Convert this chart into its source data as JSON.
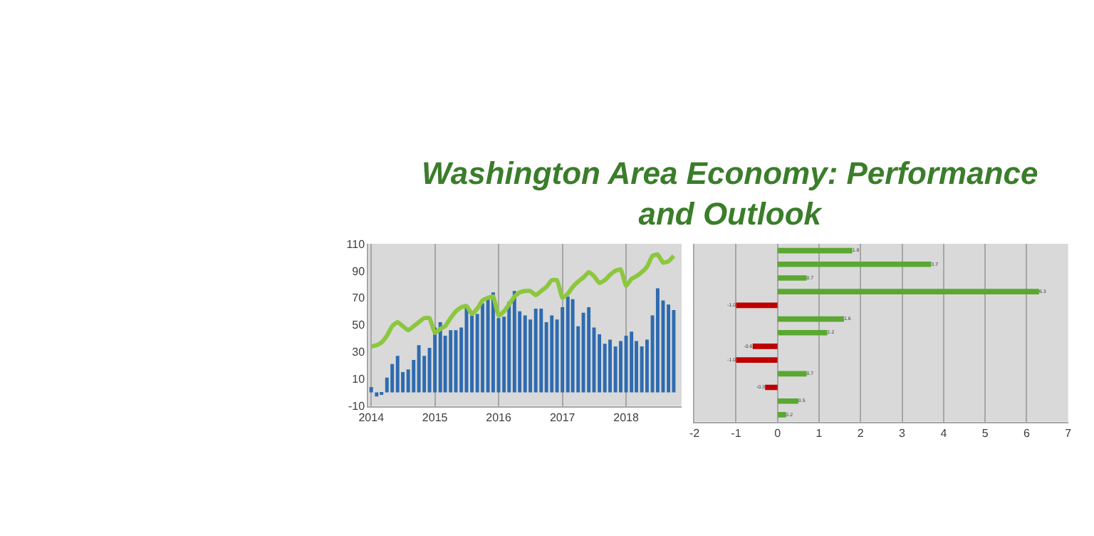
{
  "chart_data": [
    {
      "type": "bar",
      "title": "Washington Area Economy: Performance and Outlook",
      "x": [
        "2014-01",
        "2014-02",
        "2014-03",
        "2014-04",
        "2014-05",
        "2014-06",
        "2014-07",
        "2014-08",
        "2014-09",
        "2014-10",
        "2014-11",
        "2014-12",
        "2015-01",
        "2015-02",
        "2015-03",
        "2015-04",
        "2015-05",
        "2015-06",
        "2015-07",
        "2015-08",
        "2015-09",
        "2015-10",
        "2015-11",
        "2015-12",
        "2016-01",
        "2016-02",
        "2016-03",
        "2016-04",
        "2016-05",
        "2016-06",
        "2016-07",
        "2016-08",
        "2016-09",
        "2016-10",
        "2016-11",
        "2016-12",
        "2017-01",
        "2017-02",
        "2017-03",
        "2017-04",
        "2017-05",
        "2017-06",
        "2017-07",
        "2017-08",
        "2017-09",
        "2017-10",
        "2017-11",
        "2017-12",
        "2018-01",
        "2018-02",
        "2018-03",
        "2018-04",
        "2018-05",
        "2018-06",
        "2018-07",
        "2018-08",
        "2018-09",
        "2018-10"
      ],
      "series": [
        {
          "type": "bar",
          "color": "#2e6bb0",
          "values": [
            4,
            -3,
            -1,
            11,
            21,
            27,
            15,
            17,
            24,
            35,
            27,
            33,
            48,
            52,
            42,
            46,
            46,
            48,
            64,
            57,
            58,
            66,
            69,
            74,
            55,
            56,
            67,
            75,
            60,
            57,
            54,
            62,
            62,
            52,
            57,
            54,
            63,
            71,
            69,
            49,
            59,
            63,
            48,
            43,
            36,
            39,
            34,
            38,
            42,
            45,
            38,
            34,
            39,
            57,
            77,
            68,
            65,
            61
          ]
        },
        {
          "type": "line",
          "color": "#8dc63f",
          "values": [
            34,
            35,
            37,
            42,
            49,
            52,
            49,
            46,
            49,
            52,
            55,
            55,
            44,
            47,
            49,
            55,
            60,
            63,
            64,
            58,
            62,
            68,
            70,
            71,
            57,
            60,
            65,
            71,
            74,
            75,
            75,
            72,
            75,
            78,
            83,
            83,
            70,
            73,
            78,
            82,
            85,
            89,
            86,
            81,
            83,
            87,
            90,
            91,
            79,
            84,
            86,
            89,
            93,
            101,
            102,
            96,
            97,
            101
          ]
        }
      ],
      "xlim": [
        "2013-12-16",
        "2018-11-15"
      ],
      "xticks": [
        {
          "value": "2014-01-01",
          "label": "2014"
        },
        {
          "value": "2015-01-01",
          "label": "2015"
        },
        {
          "value": "2016-01-01",
          "label": "2016"
        },
        {
          "value": "2017-01-01",
          "label": "2017"
        },
        {
          "value": "2018-01-01",
          "label": "2018"
        }
      ],
      "ylim": [
        -10,
        110
      ],
      "yticks": [
        -10,
        10,
        30,
        50,
        70,
        90,
        110
      ],
      "grid": "x"
    },
    {
      "type": "bar",
      "orientation": "horizontal",
      "categories": [
        null,
        null,
        null,
        null,
        null,
        null,
        null,
        null,
        null,
        null,
        null,
        null,
        null
      ],
      "values": [
        1.8,
        3.7,
        0.7,
        6.3,
        -1.0,
        1.6,
        1.2,
        -0.6,
        -1.0,
        0.7,
        -0.3,
        0.5,
        0.2
      ],
      "colors": [
        "#5aa832",
        "#5aa832",
        "#5aa832",
        "#5aa832",
        "#c00000",
        "#5aa832",
        "#5aa832",
        "#c00000",
        "#c00000",
        "#5aa832",
        "#c00000",
        "#5aa832",
        "#5aa832"
      ],
      "value_labels": [
        "1.8",
        "3.7",
        "0.7",
        "6.3",
        "-1.0",
        "1.6",
        "1.2",
        "-0.6",
        "-1.0",
        "0.7",
        "-0.3",
        "0.5",
        "0.2"
      ],
      "xlim": [
        -2,
        7
      ],
      "xticks": [
        -2,
        -1,
        0,
        1,
        2,
        3,
        4,
        5,
        6,
        7
      ],
      "grid": "x",
      "tick_labels": "x"
    }
  ]
}
